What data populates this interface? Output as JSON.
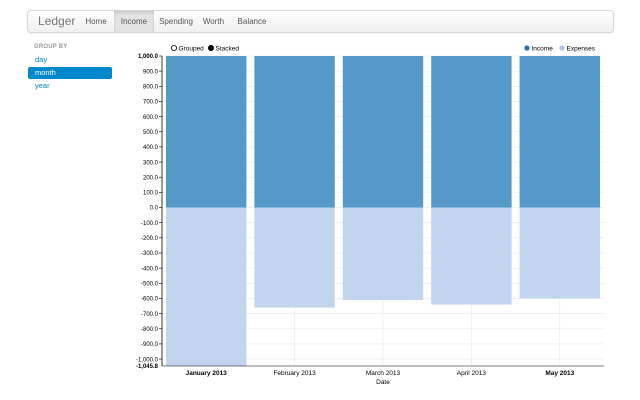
{
  "navbar": {
    "brand": "Ledger",
    "items": [
      {
        "label": "Home",
        "active": false
      },
      {
        "label": "Income",
        "active": true
      },
      {
        "label": "Spending",
        "active": false
      },
      {
        "label": "Worth",
        "active": false
      },
      {
        "label": "Balance",
        "active": false
      }
    ]
  },
  "sidebar": {
    "title": "GROUP BY",
    "items": [
      {
        "label": "day",
        "active": false
      },
      {
        "label": "month",
        "active": true
      },
      {
        "label": "year",
        "active": false
      }
    ]
  },
  "controls": {
    "grouped_label": "Grouped",
    "stacked_label": "Stacked",
    "selected": "stacked"
  },
  "legend": {
    "placement": "top-right",
    "items": [
      {
        "name": "Income",
        "color": "#1f77b4",
        "icon": "filled-circle-icon"
      },
      {
        "name": "Expenses",
        "color": "#aec7e8",
        "icon": "filled-circle-icon"
      }
    ]
  },
  "chart_data": {
    "type": "bar",
    "mode": "stacked",
    "categories": [
      "January 2013",
      "February 2013",
      "March 2013",
      "April 2013",
      "May 2013"
    ],
    "bold_categories": [
      "January 2013",
      "May 2013"
    ],
    "series": [
      {
        "name": "Income",
        "color": "#5599c8",
        "values": [
          1000,
          1000,
          1000,
          1000,
          1000
        ]
      },
      {
        "name": "Expenses",
        "color": "#c1d5ef",
        "values": [
          -1045.8,
          -660,
          -610,
          -640,
          -600
        ]
      }
    ],
    "xlabel": "Date",
    "ylabel": "",
    "ylim": [
      -1045.8,
      1000
    ],
    "yticks": [
      -1000,
      -900,
      -800,
      -700,
      -600,
      -500,
      -400,
      -300,
      -200,
      -100,
      0,
      100,
      200,
      300,
      400,
      500,
      600,
      700,
      800,
      900,
      1000
    ],
    "ytick_labels": [
      "-1,000.0",
      "-900.0",
      "-800.0",
      "-700.0",
      "-600.0",
      "-500.0",
      "-400.0",
      "-300.0",
      "-200.0",
      "-100.0",
      "0.0",
      "100.0",
      "200.0",
      "300.0",
      "400.0",
      "500.0",
      "600.0",
      "700.0",
      "800.0",
      "900.0",
      "1,000.0"
    ],
    "ymin_label": "-1,045.8",
    "grid": true
  }
}
